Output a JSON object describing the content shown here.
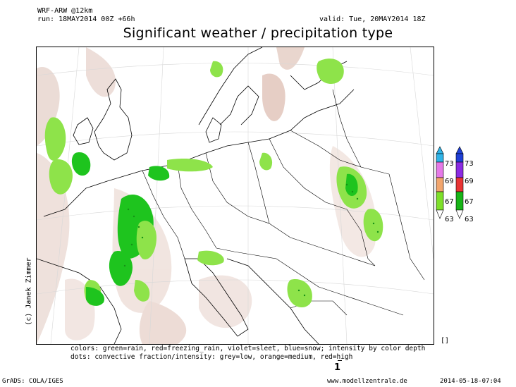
{
  "header": {
    "model": "WRF-ARW @12km",
    "run": "run: 18MAY2014 00Z +66h",
    "valid": "valid: Tue, 20MAY2014 18Z",
    "title": "Significant weather / precipitation type"
  },
  "side_label": "(c) Janek Zimmer",
  "legend_note": {
    "line1": "colors: green=rain, red=freezing_rain, violet=sleet, blue=snow; intensity by color depth",
    "line2": "dots: convective fraction/intensity:  grey=low, orange=medium, red=high"
  },
  "colorbars": [
    {
      "name": "left",
      "top_arrow_color": "#2fb4e8",
      "labels": [
        "73",
        "69",
        "67",
        "63"
      ],
      "colors": [
        "#e67ae8",
        "#f2a66e",
        "#7ee02a"
      ]
    },
    {
      "name": "right",
      "top_arrow_color": "#1f3fd6",
      "labels": [
        "73",
        "69",
        "67",
        "63"
      ],
      "colors": [
        "#8a2be2",
        "#e83434",
        "#18b418"
      ]
    }
  ],
  "colors": {
    "rain_light": "#8ee34a",
    "rain_heavy": "#1ec41e",
    "cloud_shade": "#e8d6d0",
    "cloud_shade_dark": "#d8bcb4",
    "border": "#000000"
  },
  "page_number": "1",
  "bracket": "[]",
  "footer": {
    "left": "GrADS: COLA/IGES",
    "center": "www.modellzentrale.de",
    "right": "2014-05-18-07:04"
  }
}
